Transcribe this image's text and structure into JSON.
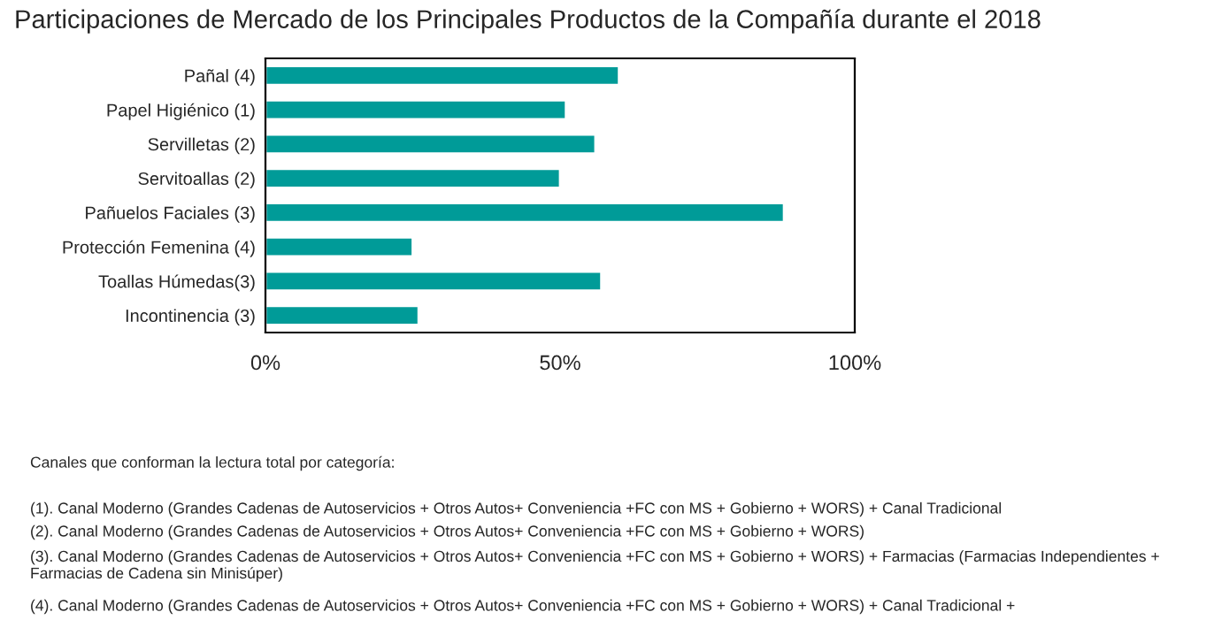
{
  "chart_data": {
    "type": "bar",
    "orientation": "horizontal",
    "title": "Participaciones de Mercado de los Principales Productos de la Compañía durante el 2018",
    "categories": [
      "Pañal (4)",
      "Papel Higiénico (1)",
      "Servilletas (2)",
      "Servitoallas (2)",
      "Pañuelos Faciales (3)",
      "Protección Femenina (4)",
      "Toallas Húmedas(3)",
      "Incontinencia (3)"
    ],
    "values": [
      60,
      51,
      56,
      50,
      88,
      25,
      57,
      26
    ],
    "color": "#009b98",
    "xlim": [
      0,
      100
    ],
    "xticks": [
      {
        "value": 0,
        "label": "0%"
      },
      {
        "value": 50,
        "label": "50%"
      },
      {
        "value": 100,
        "label": "100%"
      }
    ],
    "grid": false,
    "legend": false,
    "annotations": [
      "Canales que conforman la lectura total por categoría:",
      "(1). Canal Moderno (Grandes Cadenas de Autoservicios + Otros Autos+ Conveniencia +FC con MS + Gobierno + WORS) + Canal Tradicional",
      "(2). Canal Moderno (Grandes Cadenas de Autoservicios + Otros Autos+ Conveniencia +FC con MS + Gobierno + WORS)",
      "(3). Canal Moderno (Grandes Cadenas de Autoservicios + Otros Autos+ Conveniencia +FC con MS + Gobierno + WORS) + Farmacias (Farmacias Independientes + Farmacias de Cadena sin Minisúper)",
      "(4). Canal Moderno (Grandes Cadenas de Autoservicios + Otros Autos+ Conveniencia +FC con MS + Gobierno + WORS) + Canal Tradicional +"
    ]
  }
}
